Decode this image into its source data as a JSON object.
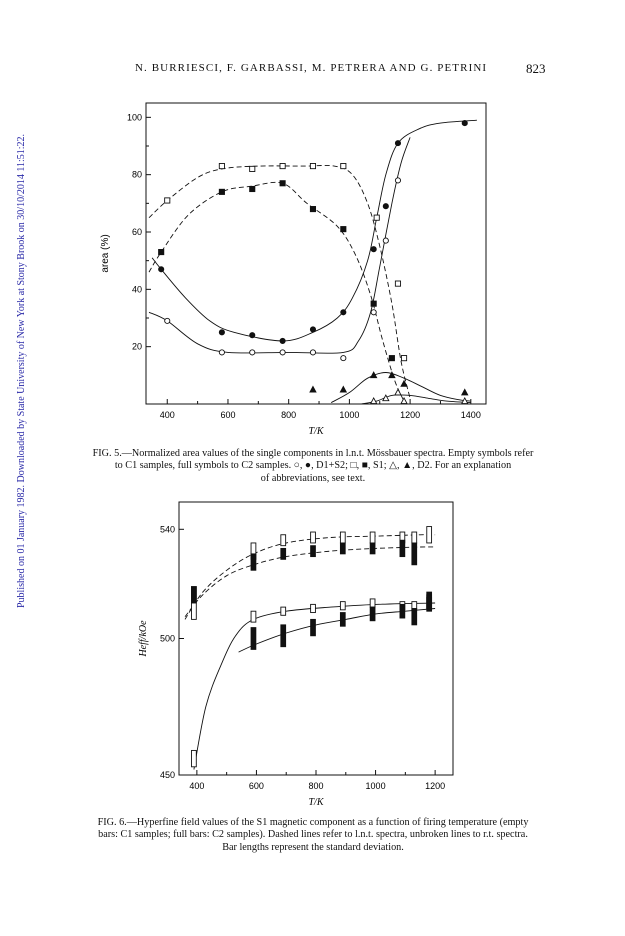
{
  "sidebar_text": "Published on 01 January 1982. Downloaded by State University of New York at Stony Brook on 30/10/2014 11:51:22.",
  "header": {
    "authors": "N. BURRIESCI, F. GARBASSI, M. PETRERA AND G. PETRINI",
    "page_number": "823"
  },
  "fig5": {
    "caption_lines": [
      "FIG. 5.—Normalized area values of the single components in l.n.t. Mössbauer spectra. Empty symbols refer",
      "to C1 samples, full symbols to C2 samples. ○, ●, D1+S2; □, ■, S1; △, ▲, D2. For an explanation",
      "of abbreviations, see text."
    ]
  },
  "fig6": {
    "caption_lines": [
      "FIG. 6.—Hyperfine field values of the S1 magnetic component as a function of firing temperature (empty",
      "bars: C1 samples; full bars: C2 samples). Dashed lines refer to l.n.t. spectra, unbroken lines to r.t. spectra.",
      "Bar lengths represent the standard deviation."
    ]
  },
  "chart_data": [
    {
      "type": "scatter",
      "title": "",
      "xlabel": "T/K",
      "ylabel": "area (%)",
      "xlim": [
        330,
        1450
      ],
      "ylim": [
        0,
        105
      ],
      "x_ticks": [
        400,
        600,
        800,
        1000,
        1200,
        1400
      ],
      "y_ticks": [
        20,
        40,
        60,
        80,
        100
      ],
      "grid": false,
      "legend": "none",
      "series": [
        {
          "marker": "open-square",
          "points": [
            [
              400,
              71
            ],
            [
              580,
              83
            ],
            [
              680,
              82
            ],
            [
              780,
              83
            ],
            [
              880,
              83
            ],
            [
              980,
              83
            ],
            [
              1090,
              65
            ],
            [
              1160,
              42
            ],
            [
              1180,
              16
            ]
          ]
        },
        {
          "marker": "filled-square",
          "points": [
            [
              380,
              53
            ],
            [
              580,
              74
            ],
            [
              680,
              75
            ],
            [
              780,
              77
            ],
            [
              880,
              68
            ],
            [
              980,
              61
            ],
            [
              1080,
              35
            ],
            [
              1140,
              16
            ]
          ]
        },
        {
          "marker": "open-circle",
          "points": [
            [
              400,
              29
            ],
            [
              580,
              18
            ],
            [
              680,
              18
            ],
            [
              780,
              18
            ],
            [
              880,
              18
            ],
            [
              980,
              16
            ],
            [
              1080,
              32
            ],
            [
              1120,
              57
            ],
            [
              1160,
              78
            ]
          ]
        },
        {
          "marker": "filled-circle",
          "points": [
            [
              380,
              47
            ],
            [
              580,
              25
            ],
            [
              680,
              24
            ],
            [
              780,
              22
            ],
            [
              880,
              26
            ],
            [
              980,
              32
            ],
            [
              1080,
              54
            ],
            [
              1120,
              69
            ],
            [
              1160,
              91
            ],
            [
              1380,
              98
            ]
          ]
        },
        {
          "marker": "open-triangle",
          "points": [
            [
              1080,
              1
            ],
            [
              1120,
              2
            ],
            [
              1160,
              4
            ],
            [
              1180,
              1
            ],
            [
              1380,
              1
            ]
          ]
        },
        {
          "marker": "filled-triangle",
          "points": [
            [
              880,
              5
            ],
            [
              980,
              5
            ],
            [
              1080,
              10
            ],
            [
              1140,
              10
            ],
            [
              1180,
              7
            ],
            [
              1380,
              4
            ]
          ]
        }
      ]
    },
    {
      "type": "scatter",
      "title": "",
      "xlabel": "T/K",
      "ylabel": "Heff/kOe",
      "xlim": [
        340,
        1260
      ],
      "ylim": [
        450,
        550
      ],
      "x_ticks": [
        400,
        600,
        800,
        1000,
        1200
      ],
      "y_ticks": [
        450,
        500,
        540
      ],
      "grid": false,
      "legend": "none",
      "series": [
        {
          "marker": "empty-bar",
          "points": [
            [
              390,
              513,
              6
            ],
            [
              590,
              532,
              3
            ],
            [
              690,
              536,
              2
            ],
            [
              790,
              537,
              2
            ],
            [
              890,
              537,
              2
            ],
            [
              990,
              537,
              2
            ],
            [
              1090,
              537,
              2
            ],
            [
              1130,
              537,
              2
            ],
            [
              1180,
              538,
              3
            ],
            [
              390,
              456,
              3
            ],
            [
              590,
              508,
              2
            ],
            [
              690,
              510,
              1.5
            ],
            [
              790,
              511,
              1.5
            ],
            [
              890,
              512,
              1.5
            ],
            [
              990,
              513,
              1.5
            ],
            [
              1090,
              512,
              1.5
            ],
            [
              1130,
              512,
              1.5
            ],
            [
              1180,
              513,
              2
            ]
          ]
        },
        {
          "marker": "full-bar",
          "points": [
            [
              390,
              516,
              3
            ],
            [
              590,
              528,
              3
            ],
            [
              690,
              531,
              2
            ],
            [
              790,
              532,
              2
            ],
            [
              890,
              533,
              2
            ],
            [
              990,
              533,
              2
            ],
            [
              1090,
              533,
              3
            ],
            [
              1130,
              531,
              4
            ],
            [
              1180,
              514,
              3
            ],
            [
              590,
              500,
              4
            ],
            [
              690,
              501,
              4
            ],
            [
              790,
              504,
              3
            ],
            [
              890,
              507,
              2.5
            ],
            [
              990,
              509,
              2.5
            ],
            [
              1090,
              510,
              2.5
            ],
            [
              1130,
              508,
              3
            ],
            [
              1180,
              513,
              3
            ]
          ]
        }
      ]
    }
  ]
}
